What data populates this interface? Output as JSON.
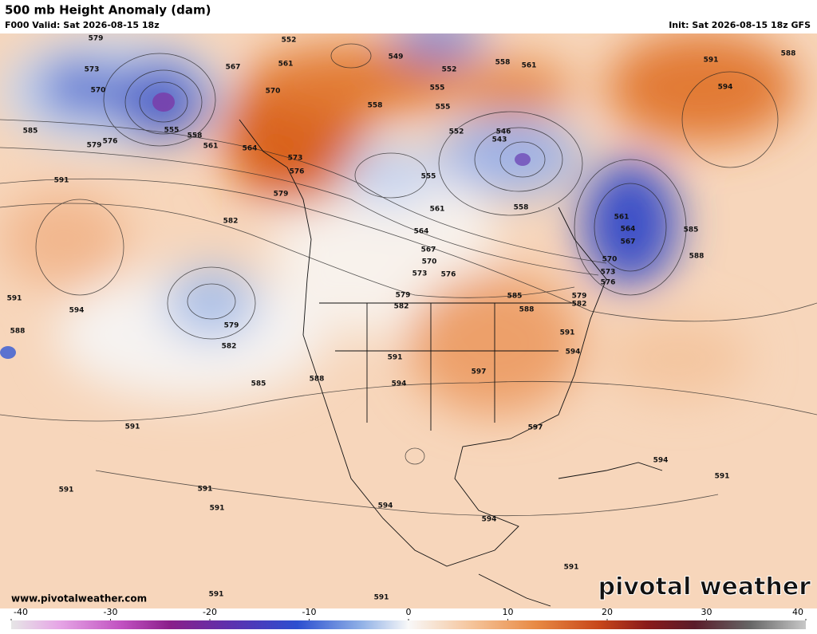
{
  "header": {
    "title": "500 mb Height Anomaly (dam)",
    "valid": "F000 Valid: Sat 2026-08-15 18z",
    "init": "Init: Sat 2026-08-15 18z GFS"
  },
  "map": {
    "contour_labels": [
      579,
      552,
      549,
      558,
      561,
      591,
      588,
      573,
      567,
      561,
      552,
      570,
      570,
      555,
      558,
      594,
      555,
      546,
      543,
      552,
      585,
      579,
      576,
      555,
      558,
      561,
      564,
      573,
      576,
      555,
      591,
      579,
      558,
      561,
      561,
      582,
      564,
      564,
      567,
      585,
      588,
      567,
      570,
      570,
      573,
      576,
      573,
      576,
      591,
      594,
      579,
      582,
      585,
      588,
      579,
      582,
      588,
      579,
      591,
      582,
      594,
      591,
      597,
      594,
      588,
      585,
      591,
      597,
      594,
      591,
      591,
      591,
      591,
      594,
      594,
      591,
      591,
      591
    ]
  },
  "footer": {
    "website": "www.pivotalweather.com",
    "logo": "pivotal weather"
  },
  "colorbar": {
    "range": [
      -40,
      40
    ],
    "ticks": [
      -40,
      -30,
      -20,
      -10,
      0,
      10,
      20,
      30,
      40
    ]
  }
}
